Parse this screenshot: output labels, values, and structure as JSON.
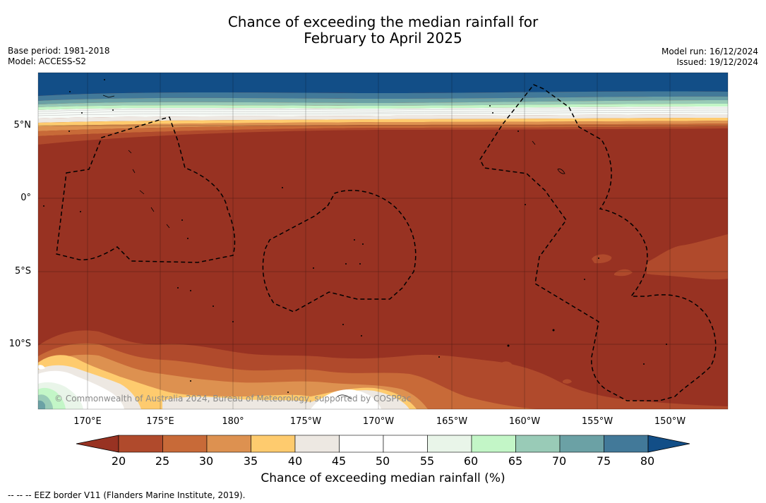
{
  "title": {
    "line1": "Chance of exceeding the median rainfall for",
    "line2": "February to April 2025"
  },
  "meta_left": {
    "base_period": "Base period: 1981-2018",
    "model": "Model: ACCESS-S2"
  },
  "meta_right": {
    "model_run": "Model run: 16/12/2024",
    "issued": "Issued: 19/12/2024"
  },
  "map": {
    "lat_labels": [
      "5°N",
      "0°",
      "5°S",
      "10°S"
    ],
    "lon_labels": [
      "170°E",
      "175°E",
      "180°",
      "175°W",
      "170°W",
      "165°W",
      "160°W",
      "155°W",
      "150°W"
    ],
    "copyright": "© Commonwealth of Australia 2024, Bureau of Meteorology, supported by COSPPac",
    "border_style": "dashed",
    "ocean_color": "#983222"
  },
  "colorbar": {
    "title": "Chance of exceeding median rainfall (%)",
    "ticks": [
      "20",
      "25",
      "30",
      "35",
      "40",
      "45",
      "50",
      "55",
      "60",
      "65",
      "70",
      "75",
      "80"
    ],
    "colors": [
      "#983222",
      "#b04a2c",
      "#c86a38",
      "#dd9150",
      "#fecb6e",
      "#ede8e2",
      "#ffffff",
      "#ffffff",
      "#e9f5e9",
      "#c3f6c7",
      "#99cbb7",
      "#6ba1a5",
      "#427999",
      "#124e87"
    ]
  },
  "footer": {
    "legend_text": "--  --  -- EEZ border V11 (Flanders Marine Institute, 2019)."
  }
}
